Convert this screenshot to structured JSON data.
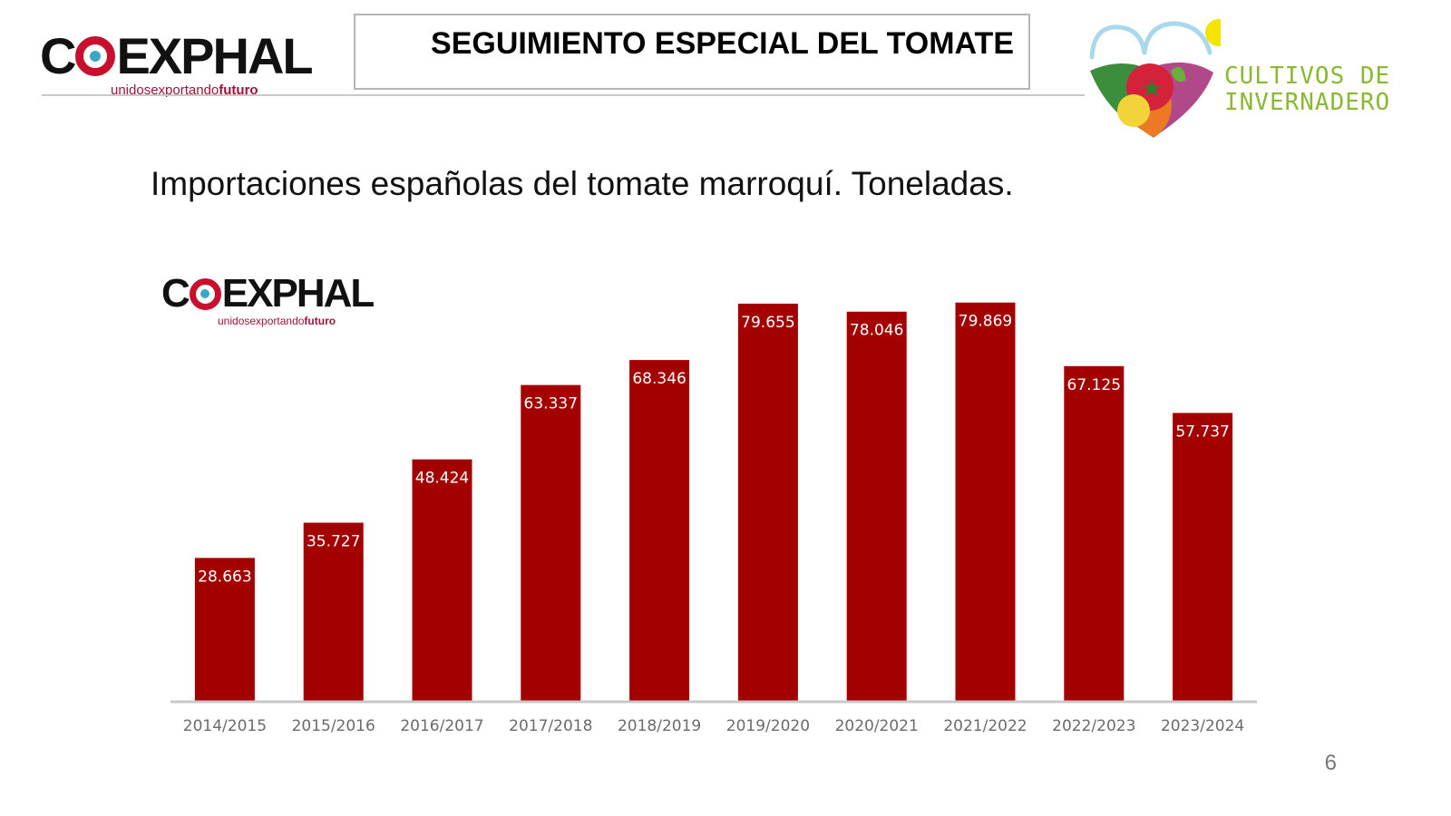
{
  "header": {
    "title": "SEGUIMIENTO ESPECIAL DEL TOMATE",
    "logo_left": {
      "pre": "C",
      "post": "EXPHAL",
      "tagline_regular": "unidos",
      "tagline_mid": "exportando",
      "tagline_bold": "futuro"
    },
    "logo_right": {
      "line1": "CULTIVOS DE",
      "line2": "INVERNADERO"
    }
  },
  "chart_logo": {
    "pre": "C",
    "post": "EXPHAL",
    "tagline_regular": "unidos",
    "tagline_mid": "exportando",
    "tagline_bold": "futuro"
  },
  "page_number": "6",
  "colors": {
    "bar": "#a30000",
    "axis": "#c8c8c8",
    "brand_green": "#8ab832",
    "brand_red": "#c8102e"
  },
  "chart_data": {
    "type": "bar",
    "title": "Importaciones españolas del tomate marroquí. Toneladas.",
    "xlabel": "",
    "ylabel": "",
    "categories": [
      "2014/2015",
      "2015/2016",
      "2016/2017",
      "2017/2018",
      "2018/2019",
      "2019/2020",
      "2020/2021",
      "2021/2022",
      "2022/2023",
      "2023/2024"
    ],
    "values": [
      28663,
      35727,
      48424,
      63337,
      68346,
      79655,
      78046,
      79869,
      67125,
      57737
    ],
    "value_labels": [
      "28.663",
      "35.727",
      "48.424",
      "63.337",
      "68.346",
      "79.655",
      "78.046",
      "79.869",
      "67.125",
      "57.737"
    ],
    "ylim": [
      0,
      80000
    ],
    "grid": false,
    "legend": "none"
  }
}
